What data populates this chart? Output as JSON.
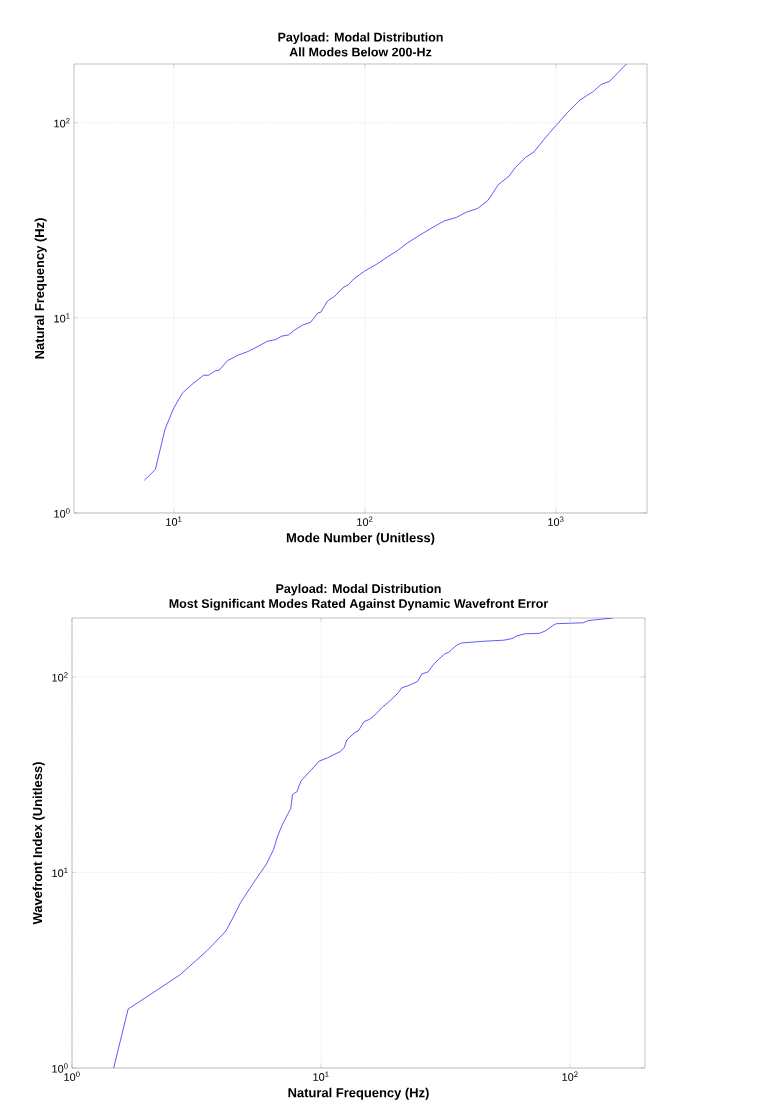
{
  "chart_data": [
    {
      "type": "line",
      "title": "Payload: Modal Distribution",
      "subtitle": "All Modes Below 200-Hz",
      "xlabel": "Mode Number (Unitless)",
      "ylabel": "Natural Frequency (Hz)",
      "log": "xy",
      "grid": true,
      "marker": "none",
      "line_style": "solid",
      "xlim": [
        3,
        3000
      ],
      "ylim": [
        1,
        200
      ],
      "xticks": [
        {
          "value": 10,
          "label": "10$^{1}$"
        },
        {
          "value": 100,
          "label": "10$^{2}$"
        },
        {
          "value": 1000,
          "label": "10$^{3}$"
        }
      ],
      "yticks": [
        {
          "value": 1,
          "label": "10$^{0}$"
        },
        {
          "value": 10,
          "label": "10$^{1}$"
        },
        {
          "value": 100,
          "label": "10$^{2}$"
        }
      ],
      "series": [
        {
          "color": "#3333ff",
          "x": [
            7,
            8,
            9,
            10,
            11.1,
            12.4,
            14.3,
            15.2,
            16.3,
            17.3,
            19.1,
            21.7,
            24.6,
            27.9,
            30.9,
            34.2,
            36.5,
            39.8,
            43,
            47.5,
            52,
            56.7,
            58.9,
            63.7,
            69.5,
            76.9,
            82.1,
            87.3,
            100,
            115,
            131,
            148,
            168,
            191,
            228,
            259,
            301,
            342,
            388,
            440,
            500,
            568,
            612,
            695,
            769,
            895,
            1000,
            1152,
            1341,
            1560,
            1726,
            1910,
            2340
          ],
          "values": [
            1.47,
            1.67,
            2.7,
            3.46,
            4.12,
            4.55,
            5.08,
            5.08,
            5.33,
            5.4,
            6.04,
            6.44,
            6.74,
            7.19,
            7.59,
            7.74,
            8.05,
            8.17,
            8.68,
            9.21,
            9.49,
            10.6,
            10.7,
            12.2,
            12.9,
            14.3,
            14.8,
            15.8,
            17.4,
            18.8,
            20.5,
            22.1,
            24.3,
            26.3,
            29.2,
            31.3,
            32.7,
            34.9,
            36.3,
            39.9,
            48.2,
            53.2,
            58.8,
            66.5,
            71,
            85.3,
            96.6,
            113,
            131,
            144,
            157,
            163,
            200
          ]
        }
      ]
    },
    {
      "type": "line",
      "title": "Payload: Modal Distribution",
      "subtitle": "Most Significant Modes Rated Against Dynamic Wavefront Error",
      "xlabel": "Natural Frequency (Hz)",
      "ylabel": "Wavefront Index (Unitless)",
      "log": "xy",
      "grid": true,
      "marker": "none",
      "line_style": "solid",
      "xlim": [
        1,
        200
      ],
      "ylim": [
        1,
        200
      ],
      "xticks": [
        {
          "value": 1,
          "label": "10$^{0}$"
        },
        {
          "value": 10,
          "label": "10$^{1}$"
        },
        {
          "value": 100,
          "label": "10$^{2}$"
        }
      ],
      "yticks": [
        {
          "value": 1,
          "label": "10$^{0}$"
        },
        {
          "value": 10,
          "label": "10$^{1}$"
        },
        {
          "value": 100,
          "label": "10$^{2}$"
        }
      ],
      "series": [
        {
          "color": "#3333ff",
          "x": [
            1.47,
            1.68,
            2.72,
            3.5,
            4.14,
            4.44,
            4.75,
            5.37,
            6.03,
            6.45,
            6.65,
            6.97,
            7.25,
            7.56,
            7.68,
            8.01,
            8.3,
            8.9,
            9.1,
            9.8,
            10.6,
            11.9,
            12.4,
            12.7,
            13.6,
            14.1,
            14.9,
            15.7,
            16.7,
            17.6,
            19,
            20.4,
            21.1,
            22.6,
            24.4,
            25.4,
            26.9,
            28.5,
            29.7,
            31.4,
            32.7,
            33.7,
            35.3,
            36.7,
            44.6,
            54.2,
            58.5,
            61.3,
            65.8,
            75.4,
            79.8,
            85.3,
            88,
            113,
            118,
            132,
            149
          ],
          "values": [
            1,
            2,
            3,
            4,
            5,
            5.9,
            7,
            8.9,
            11,
            13.1,
            15,
            17.4,
            19.2,
            21.2,
            25,
            25.9,
            29.3,
            32.3,
            33.2,
            37,
            38.5,
            41.4,
            43.5,
            47.6,
            51.7,
            52.9,
            59.1,
            60.7,
            65,
            69.7,
            75.8,
            82.8,
            87.9,
            90.5,
            94.7,
            103.5,
            106,
            117,
            123,
            131,
            134,
            139,
            146,
            149,
            152,
            154,
            157,
            162,
            166,
            167,
            172,
            183,
            187,
            189,
            194,
            197,
            200
          ]
        }
      ]
    }
  ]
}
